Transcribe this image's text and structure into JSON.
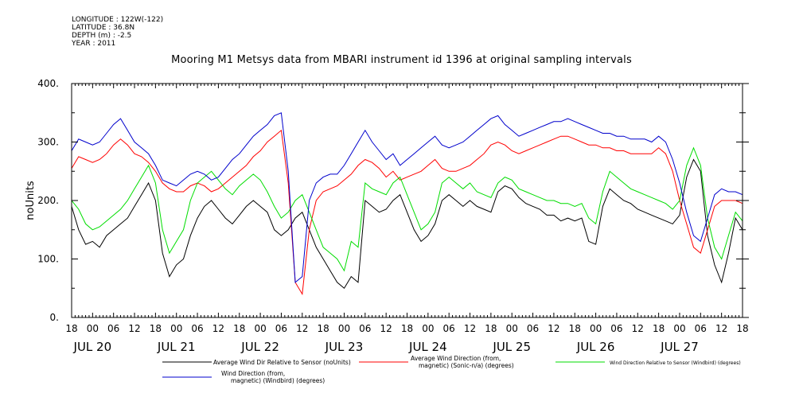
{
  "meta": {
    "longitude": "LONGITUDE : 122W(-122)",
    "latitude": "LATITUDE : 36.8N",
    "depth": "DEPTH (m) : -2.5",
    "year": "YEAR : 2011"
  },
  "chart_data": {
    "type": "line",
    "title": "Mooring M1 Metsys data from MBARI instrument id 1396 at original sampling intervals",
    "ylabel": "noUnits",
    "xlabel": "",
    "ylim": [
      0,
      400
    ],
    "yticks": [
      "0.",
      "100.",
      "200.",
      "300.",
      "400."
    ],
    "xlim_hours": [
      -6,
      186
    ],
    "xticks_hour_labels": [
      "18",
      "00",
      "06",
      "12",
      "18",
      "00",
      "06",
      "12",
      "18",
      "00",
      "06",
      "12",
      "18",
      "00",
      "06",
      "12",
      "18",
      "00",
      "06",
      "12",
      "18",
      "00",
      "06",
      "12",
      "18",
      "00",
      "06",
      "12",
      "18",
      "00",
      "06",
      "12",
      "18"
    ],
    "date_labels": [
      {
        "label": "JUL 20",
        "hour": 0
      },
      {
        "label": "JUL 21",
        "hour": 24
      },
      {
        "label": "JUL 22",
        "hour": 48
      },
      {
        "label": "JUL 23",
        "hour": 72
      },
      {
        "label": "JUL 24",
        "hour": 96
      },
      {
        "label": "JUL 25",
        "hour": 120
      },
      {
        "label": "JUL 26",
        "hour": 144
      },
      {
        "label": "JUL 27",
        "hour": 168
      }
    ],
    "grid": false,
    "legend_position": "bottom",
    "series": [
      {
        "name": "Average Wind Dir Relative to Sensor (noUnits)",
        "color": "#000000",
        "x": [
          -6,
          -4,
          -2,
          0,
          2,
          4,
          6,
          8,
          10,
          12,
          14,
          16,
          18,
          20,
          22,
          24,
          26,
          28,
          30,
          32,
          34,
          36,
          38,
          40,
          42,
          44,
          46,
          48,
          50,
          52,
          54,
          56,
          58,
          60,
          62,
          64,
          66,
          68,
          70,
          72,
          74,
          76,
          78,
          80,
          82,
          84,
          86,
          88,
          90,
          92,
          94,
          96,
          98,
          100,
          102,
          104,
          106,
          108,
          110,
          112,
          114,
          116,
          118,
          120,
          122,
          124,
          126,
          128,
          130,
          132,
          134,
          136,
          138,
          140,
          142,
          144,
          146,
          148,
          150,
          152,
          154,
          156,
          158,
          160,
          162,
          164,
          166,
          168,
          170,
          172,
          174,
          176,
          178,
          180,
          182,
          184,
          186
        ],
        "y": [
          190,
          150,
          125,
          130,
          120,
          140,
          150,
          160,
          170,
          190,
          210,
          230,
          200,
          110,
          70,
          90,
          100,
          140,
          170,
          190,
          200,
          185,
          170,
          160,
          175,
          190,
          200,
          190,
          180,
          150,
          140,
          150,
          170,
          180,
          150,
          120,
          100,
          80,
          60,
          50,
          70,
          60,
          200,
          190,
          180,
          185,
          200,
          210,
          180,
          150,
          130,
          140,
          160,
          200,
          210,
          200,
          190,
          200,
          190,
          185,
          180,
          215,
          225,
          220,
          205,
          195,
          190,
          185,
          175,
          175,
          165,
          170,
          165,
          170,
          130,
          125,
          190,
          220,
          210,
          200,
          195,
          185,
          180,
          175,
          170,
          165,
          160,
          175,
          240,
          270,
          250,
          140,
          90,
          60,
          110,
          170,
          150
        ]
      },
      {
        "name": "Average Wind Direction (from, magnetic) (Sonic-n/a) (degrees)",
        "color": "#ff0000",
        "x": [
          -6,
          -4,
          -2,
          0,
          2,
          4,
          6,
          8,
          10,
          12,
          14,
          16,
          18,
          20,
          22,
          24,
          26,
          28,
          30,
          32,
          34,
          36,
          38,
          40,
          42,
          44,
          46,
          48,
          50,
          52,
          54,
          56,
          58,
          60,
          62,
          64,
          66,
          68,
          70,
          72,
          74,
          76,
          78,
          80,
          82,
          84,
          86,
          88,
          90,
          92,
          94,
          96,
          98,
          100,
          102,
          104,
          106,
          108,
          110,
          112,
          114,
          116,
          118,
          120,
          122,
          124,
          126,
          128,
          130,
          132,
          134,
          136,
          138,
          140,
          142,
          144,
          146,
          148,
          150,
          152,
          154,
          156,
          158,
          160,
          162,
          164,
          166,
          168,
          170,
          172,
          174,
          176,
          178,
          180,
          182,
          184,
          186
        ],
        "y": [
          255,
          275,
          270,
          265,
          270,
          280,
          295,
          305,
          295,
          280,
          275,
          265,
          250,
          230,
          220,
          215,
          215,
          225,
          230,
          225,
          215,
          220,
          230,
          240,
          250,
          260,
          275,
          285,
          300,
          310,
          320,
          230,
          60,
          40,
          150,
          200,
          215,
          220,
          225,
          235,
          245,
          260,
          270,
          265,
          255,
          240,
          250,
          235,
          240,
          245,
          250,
          260,
          270,
          255,
          250,
          250,
          255,
          260,
          270,
          280,
          295,
          300,
          295,
          285,
          280,
          285,
          290,
          295,
          300,
          305,
          310,
          310,
          305,
          300,
          295,
          295,
          290,
          290,
          285,
          285,
          280,
          280,
          280,
          280,
          290,
          280,
          250,
          200,
          160,
          120,
          110,
          150,
          190,
          200,
          200,
          200,
          195
        ]
      },
      {
        "name": "Wind Direction Relative to Sensor (Windbird) (degrees)",
        "color": "#00dd00",
        "x": [
          -6,
          -4,
          -2,
          0,
          2,
          4,
          6,
          8,
          10,
          12,
          14,
          16,
          18,
          20,
          22,
          24,
          26,
          28,
          30,
          32,
          34,
          36,
          38,
          40,
          42,
          44,
          46,
          48,
          50,
          52,
          54,
          56,
          58,
          60,
          62,
          64,
          66,
          68,
          70,
          72,
          74,
          76,
          78,
          80,
          82,
          84,
          86,
          88,
          90,
          92,
          94,
          96,
          98,
          100,
          102,
          104,
          106,
          108,
          110,
          112,
          114,
          116,
          118,
          120,
          122,
          124,
          126,
          128,
          130,
          132,
          134,
          136,
          138,
          140,
          142,
          144,
          146,
          148,
          150,
          152,
          154,
          156,
          158,
          160,
          162,
          164,
          166,
          168,
          170,
          172,
          174,
          176,
          178,
          180,
          182,
          184,
          186
        ],
        "y": [
          200,
          185,
          160,
          150,
          155,
          165,
          175,
          185,
          200,
          220,
          240,
          260,
          230,
          150,
          110,
          130,
          150,
          200,
          230,
          240,
          250,
          235,
          220,
          210,
          225,
          235,
          245,
          235,
          215,
          190,
          170,
          180,
          200,
          210,
          180,
          150,
          120,
          110,
          100,
          80,
          130,
          120,
          230,
          220,
          215,
          210,
          230,
          240,
          210,
          180,
          150,
          160,
          180,
          230,
          240,
          230,
          220,
          230,
          215,
          210,
          205,
          230,
          240,
          235,
          220,
          215,
          210,
          205,
          200,
          200,
          195,
          195,
          190,
          195,
          170,
          160,
          215,
          250,
          240,
          230,
          220,
          215,
          210,
          205,
          200,
          195,
          185,
          200,
          260,
          290,
          260,
          170,
          120,
          100,
          140,
          180,
          165
        ]
      },
      {
        "name": "Wind Direction (from, magnetic) (Windbird) (degrees)",
        "color": "#0000cc",
        "x": [
          -6,
          -4,
          -2,
          0,
          2,
          4,
          6,
          8,
          10,
          12,
          14,
          16,
          18,
          20,
          22,
          24,
          26,
          28,
          30,
          32,
          34,
          36,
          38,
          40,
          42,
          44,
          46,
          48,
          50,
          52,
          54,
          56,
          58,
          60,
          62,
          64,
          66,
          68,
          70,
          72,
          74,
          76,
          78,
          80,
          82,
          84,
          86,
          88,
          90,
          92,
          94,
          96,
          98,
          100,
          102,
          104,
          106,
          108,
          110,
          112,
          114,
          116,
          118,
          120,
          122,
          124,
          126,
          128,
          130,
          132,
          134,
          136,
          138,
          140,
          142,
          144,
          146,
          148,
          150,
          152,
          154,
          156,
          158,
          160,
          162,
          164,
          166,
          168,
          170,
          172,
          174,
          176,
          178,
          180,
          182,
          184,
          186
        ],
        "y": [
          285,
          305,
          300,
          295,
          300,
          315,
          330,
          340,
          320,
          300,
          290,
          280,
          260,
          235,
          230,
          225,
          235,
          245,
          250,
          245,
          235,
          240,
          255,
          270,
          280,
          295,
          310,
          320,
          330,
          345,
          350,
          250,
          60,
          70,
          200,
          230,
          240,
          245,
          245,
          260,
          280,
          300,
          320,
          300,
          285,
          270,
          280,
          260,
          270,
          280,
          290,
          300,
          310,
          295,
          290,
          295,
          300,
          310,
          320,
          330,
          340,
          345,
          330,
          320,
          310,
          315,
          320,
          325,
          330,
          335,
          335,
          340,
          335,
          330,
          325,
          320,
          315,
          315,
          310,
          310,
          305,
          305,
          305,
          300,
          310,
          300,
          270,
          230,
          180,
          140,
          130,
          170,
          210,
          220,
          215,
          215,
          210
        ]
      }
    ]
  },
  "legend": {
    "items": [
      {
        "line1": "Average Wind Dir Relative to Sensor (noUnits)",
        "line2": ""
      },
      {
        "line1": "Average Wind Direction (from,",
        "line2": "magnetic) (Sonic-n/a) (degrees)"
      },
      {
        "line1": "Wind Direction Relative to Sensor (Windbird) (degrees)",
        "line2": ""
      },
      {
        "line1": "Wind Direction (from,",
        "line2": "magnetic) (Windbird) (degrees)"
      }
    ]
  }
}
